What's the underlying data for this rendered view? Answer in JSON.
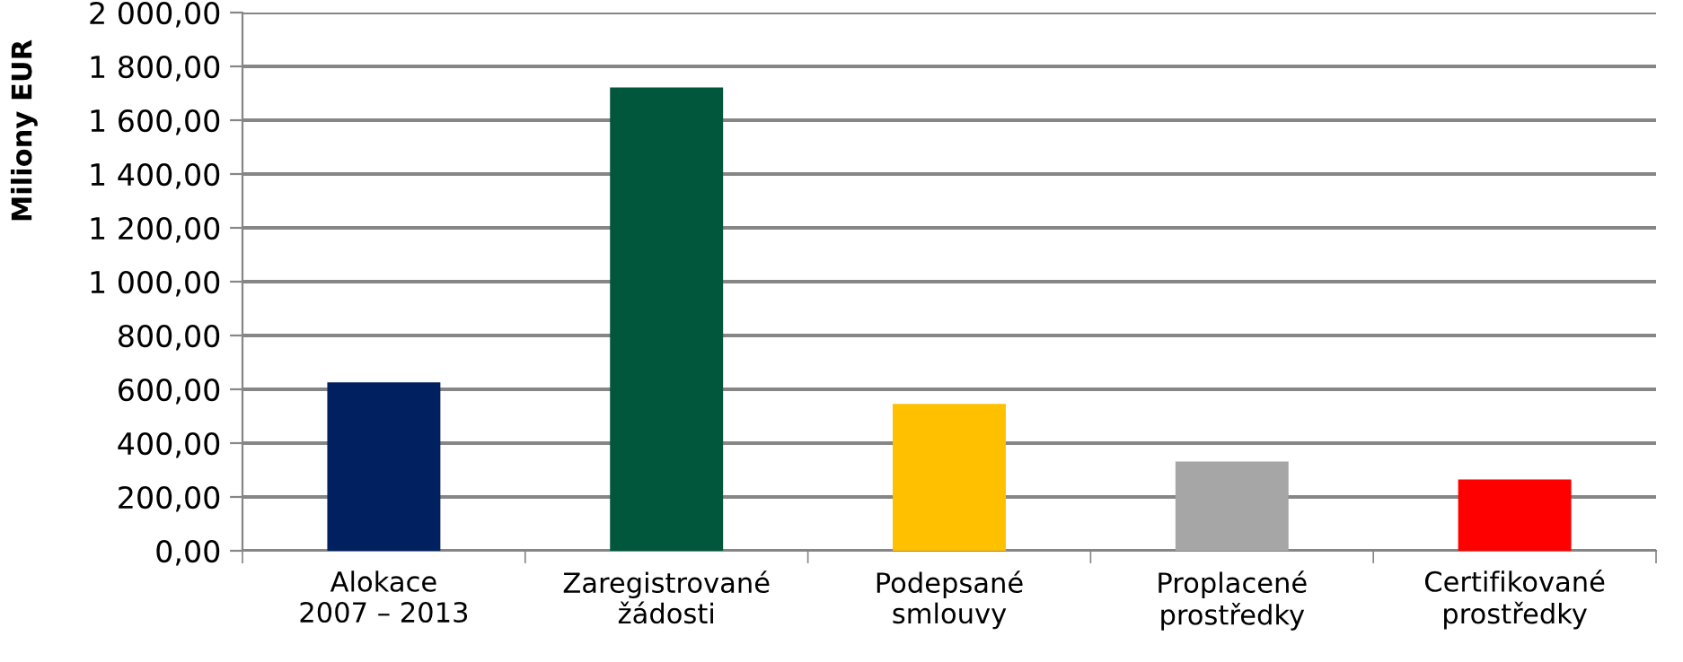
{
  "chart_data": {
    "type": "bar",
    "ylabel": "Miliony EUR",
    "categories": [
      "Alokace\n2007 – 2013",
      "Zaregistrované\nžádosti",
      "Podepsané\nsmlouvy",
      "Proplacené\nprostředky",
      "Certifikované\nprostředky"
    ],
    "values": [
      626,
      1722,
      546,
      332,
      265
    ],
    "colors": [
      "#002060",
      "#00573c",
      "#ffc000",
      "#a6a6a6",
      "#ff0000"
    ],
    "ylim": [
      0,
      2000
    ],
    "yticks": [
      {
        "value": 0,
        "label": "0,00"
      },
      {
        "value": 200,
        "label": "200,00"
      },
      {
        "value": 400,
        "label": "400,00"
      },
      {
        "value": 600,
        "label": "600,00"
      },
      {
        "value": 800,
        "label": "800,00"
      },
      {
        "value": 1000,
        "label": "1 000,00"
      },
      {
        "value": 1200,
        "label": "1 200,00"
      },
      {
        "value": 1400,
        "label": "1 400,00"
      },
      {
        "value": 1600,
        "label": "1 600,00"
      },
      {
        "value": 1800,
        "label": "1 800,00"
      },
      {
        "value": 2000,
        "label": "2 000,00"
      }
    ],
    "grid": "y"
  }
}
